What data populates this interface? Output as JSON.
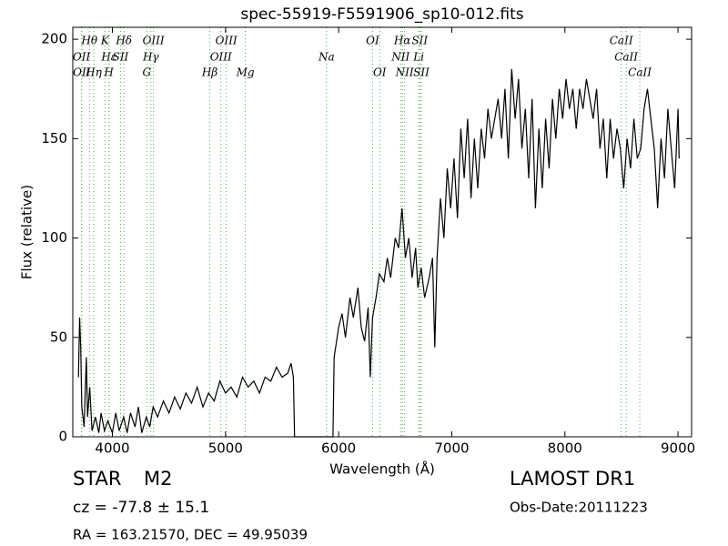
{
  "chart_data": {
    "type": "line",
    "title": "spec-55919-F5591906_sp10-012.fits",
    "x_label": "Wavelength (Å)",
    "y_label": "Flux (relative)",
    "xlim": [
      3650,
      9120
    ],
    "ylim": [
      0,
      206
    ],
    "xticks": [
      4000,
      5000,
      6000,
      7000,
      8000,
      9000
    ],
    "yticks": [
      0,
      50,
      100,
      150,
      200
    ],
    "grid": false,
    "color": "#000000",
    "line_color": "#55aa55",
    "x": [
      3700,
      3710,
      3720,
      3730,
      3750,
      3770,
      3780,
      3800,
      3820,
      3850,
      3880,
      3900,
      3930,
      3960,
      4000,
      4030,
      4060,
      4100,
      4130,
      4160,
      4200,
      4230,
      4260,
      4300,
      4330,
      4360,
      4400,
      4450,
      4500,
      4550,
      4600,
      4650,
      4700,
      4750,
      4800,
      4850,
      4900,
      4950,
      5000,
      5050,
      5100,
      5150,
      5200,
      5250,
      5300,
      5350,
      5400,
      5450,
      5500,
      5550,
      5580,
      5600,
      5610,
      5950,
      5960,
      6000,
      6030,
      6060,
      6100,
      6130,
      6170,
      6200,
      6230,
      6260,
      6280,
      6300,
      6330,
      6360,
      6400,
      6430,
      6460,
      6500,
      6530,
      6560,
      6590,
      6620,
      6650,
      6680,
      6700,
      6730,
      6760,
      6800,
      6830,
      6850,
      6870,
      6900,
      6930,
      6960,
      6990,
      7020,
      7050,
      7080,
      7110,
      7140,
      7170,
      7200,
      7230,
      7260,
      7290,
      7320,
      7350,
      7380,
      7410,
      7440,
      7470,
      7500,
      7530,
      7560,
      7590,
      7620,
      7650,
      7680,
      7710,
      7740,
      7770,
      7800,
      7830,
      7860,
      7890,
      7920,
      7950,
      7980,
      8010,
      8040,
      8070,
      8100,
      8130,
      8160,
      8190,
      8220,
      8250,
      8280,
      8310,
      8340,
      8370,
      8400,
      8430,
      8460,
      8490,
      8520,
      8550,
      8580,
      8610,
      8640,
      8670,
      8700,
      8730,
      8760,
      8790,
      8820,
      8850,
      8880,
      8910,
      8940,
      8970,
      9000,
      9010
    ],
    "values": [
      30,
      60,
      45,
      15,
      5,
      40,
      10,
      25,
      3,
      10,
      2,
      12,
      3,
      8,
      2,
      12,
      3,
      10,
      2,
      12,
      5,
      15,
      2,
      10,
      5,
      15,
      10,
      18,
      12,
      20,
      14,
      22,
      17,
      25,
      15,
      22,
      18,
      28,
      22,
      25,
      20,
      30,
      25,
      28,
      22,
      30,
      28,
      35,
      30,
      32,
      37,
      30,
      0,
      0,
      40,
      55,
      62,
      50,
      70,
      60,
      75,
      55,
      48,
      65,
      30,
      60,
      70,
      82,
      78,
      90,
      80,
      100,
      95,
      115,
      90,
      100,
      80,
      95,
      75,
      85,
      70,
      80,
      90,
      45,
      90,
      120,
      100,
      135,
      115,
      140,
      110,
      155,
      130,
      160,
      120,
      150,
      125,
      155,
      140,
      165,
      150,
      160,
      170,
      150,
      175,
      140,
      185,
      160,
      180,
      145,
      165,
      130,
      170,
      115,
      155,
      125,
      160,
      135,
      170,
      150,
      175,
      160,
      180,
      165,
      175,
      155,
      175,
      165,
      180,
      170,
      160,
      175,
      145,
      160,
      130,
      160,
      140,
      155,
      145,
      125,
      150,
      135,
      160,
      140,
      145,
      165,
      175,
      160,
      145,
      115,
      150,
      130,
      165,
      145,
      125,
      165,
      140
    ],
    "line_rows": [
      [
        {
          "label": "Hθ",
          "wavelength": 3797
        },
        {
          "label": "K",
          "wavelength": 3934
        },
        {
          "label": "Hδ",
          "wavelength": 4102
        },
        {
          "label": "OIII",
          "wavelength": 4363
        },
        {
          "label": "OIII",
          "wavelength": 5007
        },
        {
          "label": "OI",
          "wavelength": 6300
        },
        {
          "label": "Hα",
          "wavelength": 6563
        },
        {
          "label": "SII",
          "wavelength": 6717
        },
        {
          "label": "CaII",
          "wavelength": 8498
        }
      ],
      [
        {
          "label": "OII",
          "wavelength": 3727
        },
        {
          "label": "Hε",
          "wavelength": 3970
        },
        {
          "label": "SII",
          "wavelength": 4072
        },
        {
          "label": "Hγ",
          "wavelength": 4340
        },
        {
          "label": "OIII",
          "wavelength": 4959
        },
        {
          "label": "Na",
          "wavelength": 5893
        },
        {
          "label": "NII",
          "wavelength": 6548
        },
        {
          "label": "Li",
          "wavelength": 6708
        },
        {
          "label": "CaII",
          "wavelength": 8542
        }
      ],
      [
        {
          "label": "OII",
          "wavelength": 3729
        },
        {
          "label": "Hη",
          "wavelength": 3835
        },
        {
          "label": "H",
          "wavelength": 3969
        },
        {
          "label": "G",
          "wavelength": 4304
        },
        {
          "label": "Hβ",
          "wavelength": 4861
        },
        {
          "label": "Mg",
          "wavelength": 5175
        },
        {
          "label": "OI",
          "wavelength": 6363
        },
        {
          "label": "NII",
          "wavelength": 6583
        },
        {
          "label": "SII",
          "wavelength": 6731
        },
        {
          "label": "CaII",
          "wavelength": 8662
        }
      ]
    ]
  },
  "info": {
    "object_class": "STAR",
    "subclass": "M2",
    "redshift": "cz = -77.8 ± 15.1",
    "coords": "RA = 163.21570, DEC = 49.95039",
    "survey": "LAMOST DR1",
    "obs_date": "Obs-Date:20111223"
  }
}
